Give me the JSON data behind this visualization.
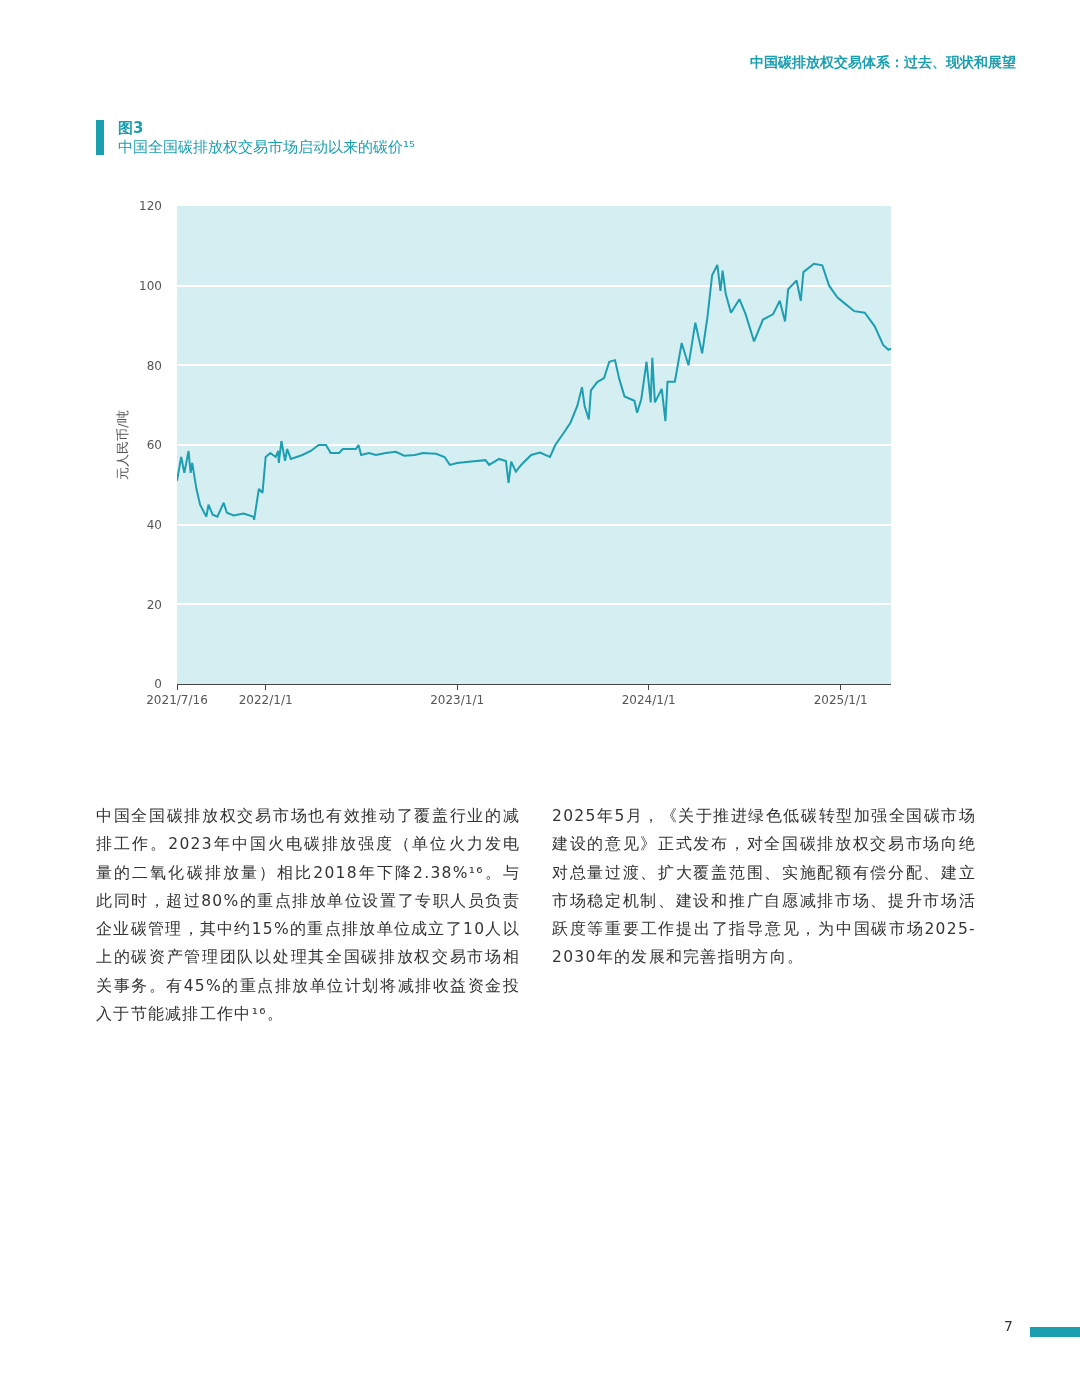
{
  "chart_data": {
    "type": "line",
    "title": "图3",
    "subtitle": "中国全国碳排放权交易市场启动以来的碳价¹⁵",
    "ylabel": "元人民币/吨",
    "x": [
      "2021-07-16",
      "2021-07-24",
      "2021-07-30",
      "2021-08-07",
      "2021-08-11",
      "2021-08-14",
      "2021-08-22",
      "2021-08-29",
      "2021-09-10",
      "2021-09-14",
      "2021-09-22",
      "2021-10-01",
      "2021-10-13",
      "2021-10-19",
      "2021-11-01",
      "2021-11-20",
      "2021-12-09",
      "2021-12-10",
      "2021-12-19",
      "2021-12-26",
      "2022-01-01",
      "2022-01-10",
      "2022-01-20",
      "2022-01-25",
      "2022-01-26",
      "2022-01-31",
      "2022-02-07",
      "2022-02-11",
      "2022-02-18",
      "2022-03-12",
      "2022-03-28",
      "2022-04-12",
      "2022-04-26",
      "2022-05-05",
      "2022-05-21",
      "2022-05-28",
      "2022-06-22",
      "2022-06-27",
      "2022-07-02",
      "2022-07-17",
      "2022-07-30",
      "2022-08-18",
      "2022-09-06",
      "2022-09-22",
      "2022-10-12",
      "2022-10-28",
      "2022-11-22",
      "2022-12-08",
      "2022-12-18",
      "2023-01-01",
      "2023-01-23",
      "2023-02-24",
      "2023-03-03",
      "2023-03-22",
      "2023-04-04",
      "2023-04-09",
      "2023-04-14",
      "2023-04-23",
      "2023-05-03",
      "2023-05-22",
      "2023-06-08",
      "2023-06-27",
      "2023-07-07",
      "2023-07-23",
      "2023-08-05",
      "2023-08-18",
      "2023-08-27",
      "2023-09-01",
      "2023-09-09",
      "2023-09-13",
      "2023-09-25",
      "2023-10-08",
      "2023-10-18",
      "2023-10-29",
      "2023-11-06",
      "2023-11-16",
      "2023-12-05",
      "2023-12-10",
      "2023-12-18",
      "2023-12-28",
      "2024-01-05",
      "2024-01-08",
      "2024-01-13",
      "2024-01-26",
      "2024-02-02",
      "2024-02-06",
      "2024-02-20",
      "2024-03-04",
      "2024-03-17",
      "2024-03-30",
      "2024-04-12",
      "2024-04-22",
      "2024-05-01",
      "2024-05-11",
      "2024-05-17",
      "2024-05-21",
      "2024-05-27",
      "2024-06-06",
      "2024-06-22",
      "2024-07-04",
      "2024-07-20",
      "2024-08-06",
      "2024-08-25",
      "2024-09-07",
      "2024-09-17",
      "2024-09-23",
      "2024-10-09",
      "2024-10-17",
      "2024-10-22",
      "2024-11-11",
      "2024-11-27",
      "2024-12-10",
      "2024-12-26",
      "2025-01-11",
      "2025-01-27",
      "2025-02-16",
      "2025-03-07",
      "2025-03-23",
      "2025-04-02",
      "2025-04-07"
    ],
    "series": [
      {
        "color": "#1d9fb1",
        "values": [
          51,
          57,
          53,
          58.5,
          53,
          55.5,
          49,
          45,
          42,
          45,
          42.5,
          42,
          45.5,
          43,
          42.3,
          42.8,
          42,
          41.2,
          49,
          48,
          57,
          58,
          57,
          58.5,
          55.5,
          61,
          56,
          59,
          56.5,
          57.5,
          58.5,
          60,
          60,
          58,
          58,
          59,
          59,
          60,
          57.5,
          58,
          57.5,
          58,
          58.3,
          57.3,
          57.5,
          58,
          57.8,
          57,
          55,
          55.5,
          55.8,
          56.2,
          55,
          56.5,
          56,
          50.5,
          55.8,
          53.3,
          55,
          57.5,
          58.1,
          57,
          60,
          63,
          65.6,
          69.8,
          74.5,
          69.8,
          66.4,
          73.7,
          75.8,
          76.8,
          80.9,
          81.3,
          76.6,
          72.2,
          71.1,
          68.1,
          71.5,
          80.9,
          70.7,
          81.9,
          70.7,
          74.1,
          66,
          75.9,
          75.9,
          85.6,
          80,
          90.7,
          83,
          92,
          102.6,
          105.2,
          98.7,
          103.8,
          97.9,
          93.2,
          96.6,
          92.8,
          86,
          91.5,
          92.8,
          96.2,
          91,
          99.1,
          101.3,
          96.2,
          103.4,
          105.5,
          105.1,
          100,
          97,
          95.3,
          93.6,
          93.2,
          89.8,
          85.1,
          83.9,
          84.2
        ]
      }
    ],
    "xlim": [
      "2021-07-16",
      "2025-04-07"
    ],
    "xticks": [
      {
        "value": "2021-07-16",
        "label": "2021/7/16"
      },
      {
        "value": "2022-01-01",
        "label": "2022/1/1"
      },
      {
        "value": "2023-01-01",
        "label": "2023/1/1"
      },
      {
        "value": "2024-01-01",
        "label": "2024/1/1"
      },
      {
        "value": "2025-01-01",
        "label": "2025/1/1"
      }
    ],
    "ylim": [
      0,
      120
    ],
    "yticks": [
      0,
      20,
      40,
      60,
      80,
      100,
      120
    ],
    "grid": "y",
    "marker": "none",
    "line_style": "solid",
    "annotations": [
      "中国碳排放权交易体系：过去、现状和展望",
      "中国全国碳排放权交易市场也有效推动了覆盖行业的减排工作。2023年中国火电碳排放强度（单位火力发电量的二氧化碳排放量）相比2018年下降2.38%¹⁶。与此同时，超过80%的重点排放单位设置了专职人员负责企业碳管理，其中约15%的重点排放单位成立了10人以上的碳资产管理团队以处理其全国碳排放权交易市场相关事务。有45%的重点排放单位计划将减排收益资金投入于节能减排工作中¹⁶。",
      "2025年5月，《关于推进绿色低碳转型加强全国碳市场建设的意见》正式发布，对全国碳排放权交易市场向绝对总量过渡、扩大覆盖范围、实施配额有偿分配、建立市场稳定机制、建设和推广自愿减排市场、提升市场活跃度等重要工作提出了指导意见，为中国碳市场2025-2030年的发展和完善指明方向。",
      "7"
    ]
  }
}
